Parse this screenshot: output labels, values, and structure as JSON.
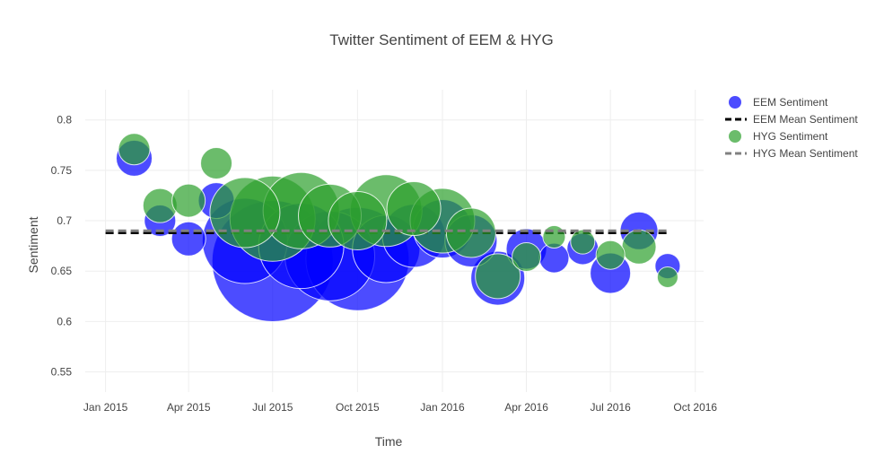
{
  "chart_data": {
    "type": "scatter",
    "title": "Twitter Sentiment of EEM & HYG",
    "xlabel": "Time",
    "ylabel": "Sentiment",
    "x_ticks": [
      "Jan 2015",
      "Apr 2015",
      "Jul 2015",
      "Oct 2015",
      "Jan 2016",
      "Apr 2016",
      "Jul 2016",
      "Oct 2016"
    ],
    "x_tick_dates": [
      "2015-01-01",
      "2015-04-01",
      "2015-07-01",
      "2015-10-01",
      "2016-01-01",
      "2016-04-01",
      "2016-07-01",
      "2016-10-01"
    ],
    "xlim": [
      "2014-12-10",
      "2016-10-10"
    ],
    "y_ticks": [
      "0.55",
      "0.6",
      "0.65",
      "0.7",
      "0.75",
      "0.8"
    ],
    "ylim": [
      0.53,
      0.83
    ],
    "grid": true,
    "legend_position": "top-right",
    "colors": {
      "eem": "#0000ff",
      "hyg": "#2ca02c",
      "eem_mean": "#000000",
      "hyg_mean": "#808080"
    },
    "series": [
      {
        "name": "EEM Sentiment",
        "kind": "bubble",
        "points": [
          {
            "x": "2015-02-01",
            "y": 0.762,
            "size": 40
          },
          {
            "x": "2015-03-01",
            "y": 0.7,
            "size": 35
          },
          {
            "x": "2015-04-01",
            "y": 0.682,
            "size": 38
          },
          {
            "x": "2015-05-01",
            "y": 0.72,
            "size": 40
          },
          {
            "x": "2015-06-01",
            "y": 0.68,
            "size": 95
          },
          {
            "x": "2015-07-01",
            "y": 0.66,
            "size": 135
          },
          {
            "x": "2015-08-01",
            "y": 0.675,
            "size": 95
          },
          {
            "x": "2015-09-01",
            "y": 0.665,
            "size": 100
          },
          {
            "x": "2015-10-01",
            "y": 0.662,
            "size": 115
          },
          {
            "x": "2015-11-01",
            "y": 0.672,
            "size": 75
          },
          {
            "x": "2015-12-01",
            "y": 0.685,
            "size": 70
          },
          {
            "x": "2016-01-01",
            "y": 0.692,
            "size": 65
          },
          {
            "x": "2016-02-01",
            "y": 0.68,
            "size": 58
          },
          {
            "x": "2016-03-01",
            "y": 0.643,
            "size": 60
          },
          {
            "x": "2016-04-01",
            "y": 0.672,
            "size": 45
          },
          {
            "x": "2016-05-01",
            "y": 0.663,
            "size": 33
          },
          {
            "x": "2016-06-01",
            "y": 0.672,
            "size": 35
          },
          {
            "x": "2016-07-01",
            "y": 0.648,
            "size": 45
          },
          {
            "x": "2016-08-01",
            "y": 0.69,
            "size": 42
          },
          {
            "x": "2016-09-01",
            "y": 0.655,
            "size": 28
          }
        ]
      },
      {
        "name": "EEM Mean Sentiment",
        "kind": "dash-line",
        "points": [
          {
            "x": "2015-01-01",
            "y": 0.688
          },
          {
            "x": "2016-09-01",
            "y": 0.688
          }
        ]
      },
      {
        "name": "HYG Sentiment",
        "kind": "bubble",
        "points": [
          {
            "x": "2015-02-01",
            "y": 0.771,
            "size": 35
          },
          {
            "x": "2015-03-01",
            "y": 0.715,
            "size": 38
          },
          {
            "x": "2015-04-01",
            "y": 0.72,
            "size": 37
          },
          {
            "x": "2015-05-01",
            "y": 0.757,
            "size": 35
          },
          {
            "x": "2015-06-01",
            "y": 0.708,
            "size": 78
          },
          {
            "x": "2015-07-01",
            "y": 0.702,
            "size": 95
          },
          {
            "x": "2015-08-01",
            "y": 0.71,
            "size": 85
          },
          {
            "x": "2015-09-01",
            "y": 0.705,
            "size": 70
          },
          {
            "x": "2015-10-01",
            "y": 0.7,
            "size": 65
          },
          {
            "x": "2015-11-01",
            "y": 0.71,
            "size": 80
          },
          {
            "x": "2015-12-01",
            "y": 0.712,
            "size": 60
          },
          {
            "x": "2016-01-01",
            "y": 0.7,
            "size": 72
          },
          {
            "x": "2016-02-01",
            "y": 0.688,
            "size": 55
          },
          {
            "x": "2016-03-01",
            "y": 0.645,
            "size": 50
          },
          {
            "x": "2016-04-01",
            "y": 0.664,
            "size": 32
          },
          {
            "x": "2016-05-01",
            "y": 0.684,
            "size": 25
          },
          {
            "x": "2016-06-01",
            "y": 0.679,
            "size": 27
          },
          {
            "x": "2016-07-01",
            "y": 0.666,
            "size": 32
          },
          {
            "x": "2016-08-01",
            "y": 0.674,
            "size": 38
          },
          {
            "x": "2016-09-01",
            "y": 0.644,
            "size": 23
          }
        ]
      },
      {
        "name": "HYG Mean Sentiment",
        "kind": "dash-line",
        "points": [
          {
            "x": "2015-01-01",
            "y": 0.69
          },
          {
            "x": "2016-09-01",
            "y": 0.69
          }
        ]
      }
    ]
  }
}
